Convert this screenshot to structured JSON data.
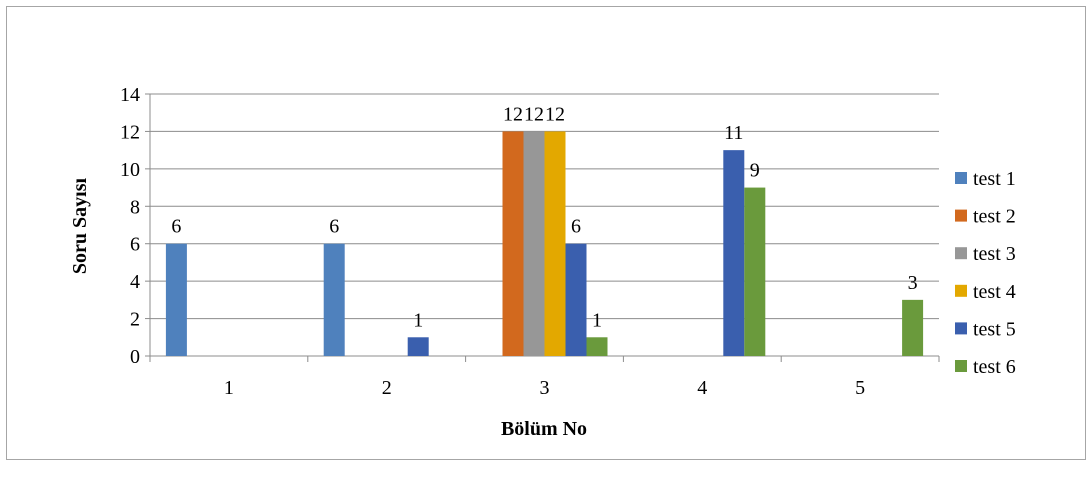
{
  "chart_data": {
    "type": "bar",
    "title": "",
    "xlabel": "Bölüm No",
    "ylabel": "Soru Sayısı",
    "ylim": [
      0,
      14
    ],
    "yticks": [
      0,
      2,
      4,
      6,
      8,
      10,
      12,
      14
    ],
    "grid": true,
    "legend_position": "right",
    "categories": [
      "1",
      "2",
      "3",
      "4",
      "5"
    ],
    "series": [
      {
        "name": "test 1",
        "color": "#4F81BD",
        "values": [
          6,
          6,
          0,
          0,
          0
        ]
      },
      {
        "name": "test 2",
        "color": "#D2691E",
        "values": [
          0,
          0,
          12,
          0,
          0
        ]
      },
      {
        "name": "test 3",
        "color": "#979797",
        "values": [
          0,
          0,
          12,
          0,
          0
        ]
      },
      {
        "name": "test 4",
        "color": "#E3A800",
        "values": [
          0,
          0,
          12,
          0,
          0
        ]
      },
      {
        "name": "test 5",
        "color": "#3A5FAE",
        "values": [
          0,
          1,
          6,
          11,
          0
        ]
      },
      {
        "name": "test 6",
        "color": "#6A9A3C",
        "values": [
          0,
          0,
          1,
          9,
          3
        ]
      }
    ]
  }
}
